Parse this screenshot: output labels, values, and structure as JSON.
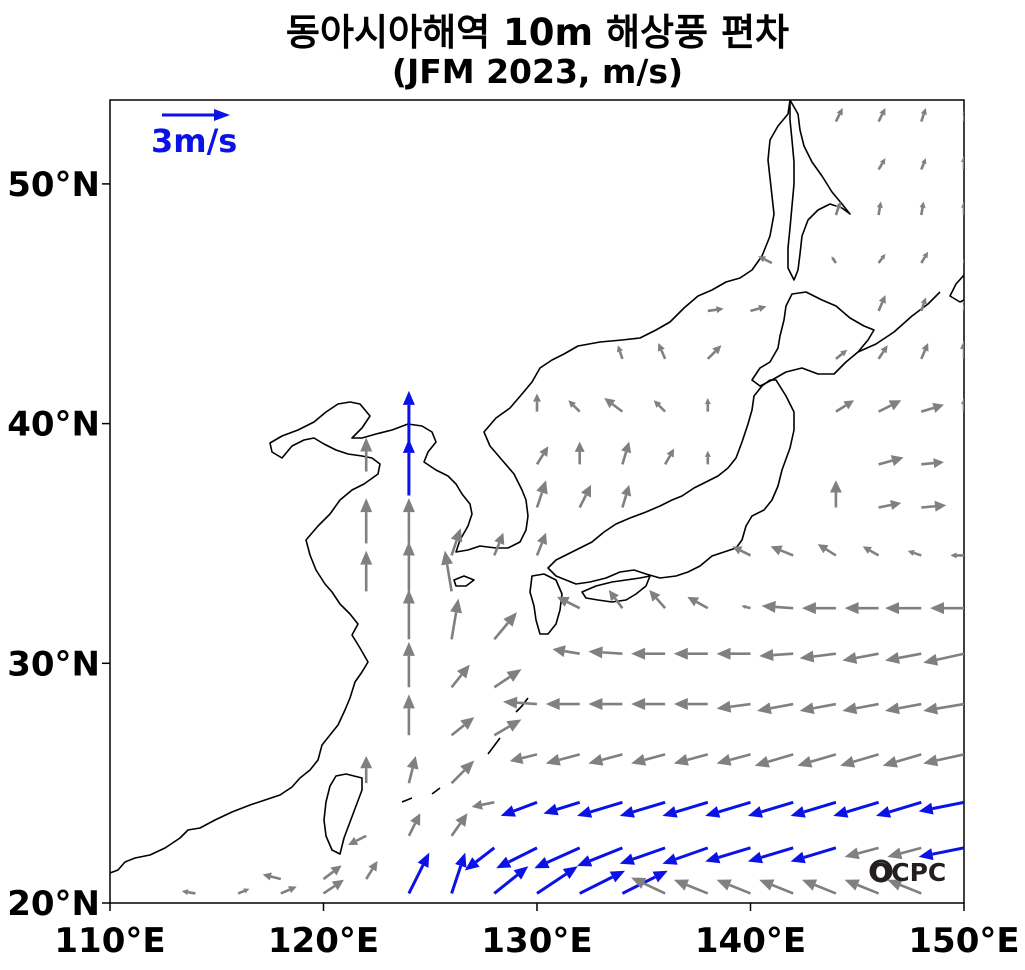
{
  "title": "동아시아해역 10m 해상풍 편차",
  "subtitle": "(JFM 2023, m/s)",
  "reference_vector": {
    "label": "3m/s",
    "magnitude": 3,
    "color": "#0b12e6"
  },
  "logo": "OCPC",
  "map": {
    "lon_range": [
      110,
      150
    ],
    "lat_range": [
      20,
      53.5
    ],
    "x_ticks": [
      {
        "value": 110,
        "label": "110°E"
      },
      {
        "value": 120,
        "label": "120°E"
      },
      {
        "value": 130,
        "label": "130°E"
      },
      {
        "value": 140,
        "label": "140°E"
      },
      {
        "value": 150,
        "label": "150°E"
      }
    ],
    "y_ticks": [
      {
        "value": 20,
        "label": "20°N"
      },
      {
        "value": 30,
        "label": "30°N"
      },
      {
        "value": 40,
        "label": "40°N"
      },
      {
        "value": 50,
        "label": "50°N"
      }
    ]
  },
  "colors": {
    "normal_arrow": "#808080",
    "strong_arrow": "#0b12e6",
    "coastline": "#000000"
  },
  "chart_data": {
    "type": "vector_field",
    "variable": "10m sea surface wind anomaly",
    "period": "JFM 2023",
    "units": "m/s",
    "strong_threshold_note": "blue arrows mark strongest anomalies",
    "vectors": [
      [
        124,
        39,
        0,
        2.5,
        1
      ],
      [
        124,
        37,
        0,
        2.5,
        1
      ],
      [
        122,
        38,
        0,
        1.5,
        0
      ],
      [
        122,
        35,
        0,
        2,
        0
      ],
      [
        124,
        35,
        0,
        2,
        0
      ],
      [
        122,
        33,
        0,
        1.8,
        0
      ],
      [
        124,
        33,
        0,
        2.2,
        0
      ],
      [
        126,
        33,
        -0.3,
        1.8,
        0
      ],
      [
        124,
        31,
        0,
        2.2,
        0
      ],
      [
        126,
        31,
        0.3,
        1.8,
        0
      ],
      [
        128,
        31,
        1,
        1.2,
        0
      ],
      [
        124,
        29,
        0,
        2,
        0
      ],
      [
        126,
        29,
        0.8,
        1,
        0
      ],
      [
        128,
        29,
        1.2,
        0.8,
        0
      ],
      [
        124,
        27,
        0,
        1.8,
        0
      ],
      [
        126,
        27,
        1,
        0.8,
        0
      ],
      [
        128,
        27,
        1.2,
        0.7,
        0
      ],
      [
        122,
        25,
        0,
        1.2,
        0
      ],
      [
        124,
        25,
        0.3,
        1.2,
        0
      ],
      [
        126,
        25,
        1,
        1,
        0
      ],
      [
        122,
        22.8,
        -0.8,
        -0.4,
        0
      ],
      [
        124,
        22.8,
        0.5,
        1,
        0
      ],
      [
        126,
        22.8,
        0.7,
        1,
        0
      ],
      [
        118,
        21,
        -0.8,
        0.2,
        0
      ],
      [
        120,
        21,
        0.8,
        0.6,
        0
      ],
      [
        122,
        21,
        0.5,
        0.8,
        0
      ],
      [
        114,
        20.4,
        -0.6,
        0.1,
        0
      ],
      [
        116,
        20.4,
        0.5,
        0.2,
        0
      ],
      [
        118,
        20.4,
        0.7,
        0.3,
        0
      ],
      [
        120,
        20.4,
        0.9,
        0.6,
        0
      ],
      [
        124,
        20.4,
        0.9,
        1.8,
        1
      ],
      [
        126,
        20.4,
        0.6,
        1.8,
        1
      ],
      [
        128,
        20.4,
        1.5,
        1.2,
        1
      ],
      [
        130,
        20.4,
        1.8,
        1.2,
        1
      ],
      [
        132,
        20.4,
        2,
        1,
        1
      ],
      [
        134,
        20.4,
        2,
        1,
        1
      ],
      [
        136,
        20.4,
        -1.5,
        0.7,
        0
      ],
      [
        138,
        20.4,
        -1.5,
        0.6,
        0
      ],
      [
        140,
        20.4,
        -1.5,
        0.6,
        0
      ],
      [
        142,
        20.4,
        -1.5,
        0.6,
        0
      ],
      [
        144,
        20.4,
        -1.5,
        0.6,
        0
      ],
      [
        146,
        20.4,
        -1.5,
        0.6,
        0
      ],
      [
        148,
        20.4,
        -1.5,
        0.6,
        0
      ],
      [
        128,
        22.3,
        -1.3,
        -1,
        1
      ],
      [
        130,
        22.3,
        -1.8,
        -0.9,
        1
      ],
      [
        132,
        22.3,
        -2,
        -0.9,
        1
      ],
      [
        134,
        22.3,
        -2,
        -0.8,
        1
      ],
      [
        136,
        22.3,
        -2,
        -0.7,
        1
      ],
      [
        138,
        22.3,
        -2,
        -0.7,
        1
      ],
      [
        140,
        22.3,
        -2,
        -0.6,
        1
      ],
      [
        142,
        22.3,
        -2,
        -0.6,
        1
      ],
      [
        144,
        22.3,
        -2,
        -0.6,
        1
      ],
      [
        146,
        22.3,
        -1.5,
        -0.4,
        0
      ],
      [
        148,
        22.3,
        -1.5,
        -0.4,
        0
      ],
      [
        150,
        22.3,
        -2,
        -0.4,
        1
      ],
      [
        128,
        24.2,
        -1,
        -0.2,
        0
      ],
      [
        130,
        24.2,
        -1.6,
        -0.6,
        1
      ],
      [
        132,
        24.2,
        -1.6,
        -0.5,
        1
      ],
      [
        134,
        24.2,
        -2,
        -0.6,
        1
      ],
      [
        136,
        24.2,
        -2,
        -0.6,
        1
      ],
      [
        138,
        24.2,
        -2,
        -0.6,
        1
      ],
      [
        140,
        24.2,
        -2,
        -0.6,
        1
      ],
      [
        142,
        24.2,
        -2,
        -0.6,
        1
      ],
      [
        144,
        24.2,
        -2,
        -0.6,
        1
      ],
      [
        146,
        24.2,
        -2,
        -0.6,
        1
      ],
      [
        148,
        24.2,
        -2,
        -0.6,
        1
      ],
      [
        150,
        24.2,
        -2,
        -0.4,
        1
      ],
      [
        130,
        26.2,
        -1.2,
        -0.3,
        0
      ],
      [
        132,
        26.2,
        -1.5,
        -0.4,
        0
      ],
      [
        134,
        26.2,
        -1.5,
        -0.4,
        0
      ],
      [
        136,
        26.2,
        -1.5,
        -0.4,
        0
      ],
      [
        138,
        26.2,
        -1.5,
        -0.4,
        0
      ],
      [
        140,
        26.2,
        -1.5,
        -0.4,
        0
      ],
      [
        142,
        26.2,
        -1.7,
        -0.5,
        0
      ],
      [
        144,
        26.2,
        -1.7,
        -0.5,
        0
      ],
      [
        146,
        26.2,
        -1.7,
        -0.5,
        0
      ],
      [
        148,
        26.2,
        -1.7,
        -0.5,
        0
      ],
      [
        150,
        26.2,
        -1.8,
        -0.4,
        0
      ],
      [
        130,
        28.3,
        -1.5,
        0.1,
        0
      ],
      [
        132,
        28.3,
        -1.5,
        0,
        0
      ],
      [
        134,
        28.3,
        -1.5,
        0,
        0
      ],
      [
        136,
        28.3,
        -1.5,
        0,
        0
      ],
      [
        138,
        28.3,
        -1.5,
        0,
        0
      ],
      [
        140,
        28.3,
        -1.5,
        -0.2,
        0
      ],
      [
        142,
        28.3,
        -1.6,
        -0.3,
        0
      ],
      [
        144,
        28.3,
        -1.6,
        -0.3,
        0
      ],
      [
        146,
        28.3,
        -1.6,
        -0.3,
        0
      ],
      [
        148,
        28.3,
        -1.6,
        -0.3,
        0
      ],
      [
        150,
        28.3,
        -1.8,
        -0.3,
        0
      ],
      [
        132,
        30.4,
        -1.2,
        0.2,
        0
      ],
      [
        134,
        30.4,
        -1.5,
        0.1,
        0
      ],
      [
        136,
        30.4,
        -1.5,
        0,
        0
      ],
      [
        138,
        30.4,
        -1.5,
        0,
        0
      ],
      [
        140,
        30.4,
        -1.5,
        0,
        0
      ],
      [
        142,
        30.4,
        -1.5,
        -0.1,
        0
      ],
      [
        144,
        30.4,
        -1.6,
        -0.2,
        0
      ],
      [
        146,
        30.4,
        -1.6,
        -0.3,
        0
      ],
      [
        148,
        30.4,
        -1.6,
        -0.3,
        0
      ],
      [
        150,
        30.4,
        -1.8,
        -0.4,
        0
      ],
      [
        132,
        32.3,
        -1,
        0.5,
        0
      ],
      [
        134,
        32.3,
        -0.6,
        0.8,
        0
      ],
      [
        136,
        32.3,
        -0.7,
        0.8,
        0
      ],
      [
        138,
        32.3,
        -0.9,
        0.5,
        0
      ],
      [
        140,
        32.3,
        -0.4,
        0.1,
        0
      ],
      [
        142,
        32.3,
        -1.4,
        0.1,
        0
      ],
      [
        144,
        32.3,
        -1.5,
        0,
        0
      ],
      [
        146,
        32.3,
        -1.5,
        0,
        0
      ],
      [
        148,
        32.3,
        -1.6,
        0,
        0
      ],
      [
        150,
        32.3,
        -1.5,
        0,
        0
      ],
      [
        126,
        34.5,
        0.4,
        1.2,
        0
      ],
      [
        128,
        34.5,
        0.4,
        1,
        0
      ],
      [
        130,
        34.5,
        0.4,
        1,
        0
      ],
      [
        140,
        34.5,
        -0.8,
        0.4,
        0
      ],
      [
        142,
        34.5,
        -1,
        0.4,
        0
      ],
      [
        144,
        34.5,
        -0.8,
        0.5,
        0
      ],
      [
        146,
        34.5,
        -0.7,
        0.4,
        0
      ],
      [
        148,
        34.5,
        -0.6,
        0.2,
        0
      ],
      [
        150,
        34.5,
        -0.6,
        0,
        0
      ],
      [
        130,
        36.5,
        0.4,
        1.2,
        0
      ],
      [
        132,
        36.5,
        0.5,
        1,
        0
      ],
      [
        134,
        36.5,
        0.3,
        1,
        0
      ],
      [
        144,
        36.5,
        0,
        1.2,
        0
      ],
      [
        146,
        36.5,
        1,
        0.2,
        0
      ],
      [
        148,
        36.5,
        1.1,
        0.1,
        0
      ],
      [
        150,
        36.5,
        0.9,
        0,
        0
      ],
      [
        130,
        38.3,
        0.5,
        0.8,
        0
      ],
      [
        132,
        38.3,
        0,
        1,
        0
      ],
      [
        134,
        38.3,
        0.3,
        1,
        0
      ],
      [
        136,
        38.3,
        0.4,
        0.7,
        0
      ],
      [
        138,
        38.3,
        0,
        0.6,
        0
      ],
      [
        146,
        38.3,
        1.1,
        0.3,
        0
      ],
      [
        148,
        38.3,
        1,
        0.1,
        0
      ],
      [
        150,
        38.3,
        0.8,
        0,
        0
      ],
      [
        130,
        40.5,
        0,
        0.8,
        0
      ],
      [
        132,
        40.5,
        -0.5,
        0.5,
        0
      ],
      [
        134,
        40.5,
        -0.8,
        0.6,
        0
      ],
      [
        136,
        40.5,
        -0.5,
        0.5,
        0
      ],
      [
        138,
        40.5,
        0,
        0.6,
        0
      ],
      [
        144,
        40.5,
        0.8,
        0.5,
        0
      ],
      [
        146,
        40.5,
        1,
        0.5,
        0
      ],
      [
        148,
        40.5,
        1,
        0.3,
        0
      ],
      [
        150,
        40.5,
        0,
        0.6,
        0
      ],
      [
        134,
        42.7,
        -0.2,
        0.6,
        0
      ],
      [
        136,
        42.7,
        -0.3,
        0.7,
        0
      ],
      [
        138,
        42.7,
        0.6,
        0.6,
        0
      ],
      [
        144,
        42.7,
        0.5,
        0.4,
        0
      ],
      [
        146,
        42.7,
        0.4,
        0.6,
        0
      ],
      [
        148,
        42.7,
        0.3,
        0.7,
        0
      ],
      [
        150,
        42.7,
        0,
        0.8,
        0
      ],
      [
        138,
        44.7,
        0.7,
        0.1,
        0
      ],
      [
        140,
        44.7,
        0.7,
        0.2,
        0
      ],
      [
        146,
        44.7,
        0.3,
        0.7,
        0
      ],
      [
        148,
        44.7,
        0.2,
        0.6,
        0
      ],
      [
        150,
        44.7,
        0.1,
        0.6,
        0
      ],
      [
        141,
        46.7,
        -0.6,
        0.3,
        0
      ],
      [
        144,
        46.7,
        -0.2,
        0.3,
        0
      ],
      [
        146,
        46.7,
        0.3,
        0.4,
        0
      ],
      [
        148,
        46.7,
        0.3,
        0.5,
        0
      ],
      [
        150,
        46.7,
        0.2,
        0.6,
        0
      ],
      [
        144,
        48.7,
        0.2,
        0.6,
        0
      ],
      [
        146,
        48.7,
        0.1,
        0.6,
        0
      ],
      [
        148,
        48.7,
        0.1,
        0.6,
        0
      ],
      [
        150,
        48.7,
        0,
        0.6,
        0
      ],
      [
        146,
        50.6,
        0.3,
        0.5,
        0
      ],
      [
        148,
        50.6,
        0.2,
        0.5,
        0
      ],
      [
        150,
        50.6,
        0,
        0.6,
        0
      ],
      [
        144,
        52.6,
        0.3,
        0.6,
        0
      ],
      [
        146,
        52.6,
        0.3,
        0.6,
        0
      ],
      [
        148,
        52.6,
        0.2,
        0.6,
        0
      ],
      [
        150,
        52.6,
        0.1,
        0.6,
        0
      ]
    ]
  }
}
